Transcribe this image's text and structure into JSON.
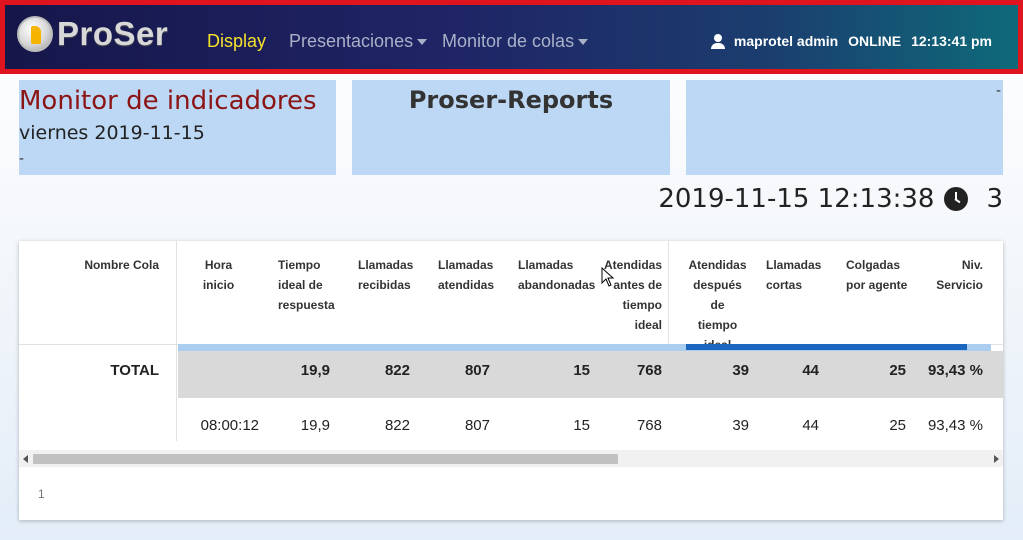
{
  "navbar": {
    "logo_text": "ProSer",
    "items": [
      {
        "label": "Display",
        "active": true
      },
      {
        "label": "Presentaciones",
        "dropdown": true
      },
      {
        "label": "Monitor de colas",
        "dropdown": true
      }
    ],
    "user": "maprotel admin",
    "status": "ONLINE",
    "time": "12:13:41 pm"
  },
  "boxes": {
    "title": "Monitor de indicadores",
    "date": "viernes 2019-11-15",
    "left_dash": "-",
    "center_title": "Proser-Reports",
    "right_dash": "-"
  },
  "timestamp": {
    "datetime": "2019-11-15 12:13:38",
    "count": "3"
  },
  "table": {
    "headers": [
      [
        "Nombre Cola"
      ],
      [
        "Hora",
        "inicio"
      ],
      [
        "Tiempo",
        "ideal de",
        "respuesta"
      ],
      [
        "Llamadas",
        "recibidas"
      ],
      [
        "Llamadas",
        "atendidas"
      ],
      [
        "Llamadas",
        "abandonadas"
      ],
      [
        "Atendidas",
        "antes de",
        "tiempo",
        "ideal"
      ],
      [
        "Atendidas",
        "después de",
        "tiempo",
        "ideal"
      ],
      [
        "Llamadas",
        "cortas"
      ],
      [
        "Colgadas",
        "por agente"
      ],
      [
        "Niv.",
        "Servicio"
      ]
    ],
    "total_row": [
      "TOTAL",
      "",
      "19,9",
      "822",
      "807",
      "15",
      "768",
      "39",
      "44",
      "25",
      "93,43 %"
    ],
    "data_row": [
      "",
      "08:00:12",
      "19,9",
      "822",
      "807",
      "15",
      "768",
      "39",
      "44",
      "25",
      "93,43 %"
    ]
  },
  "pagination": {
    "page": "1"
  },
  "colors": {
    "accent_highlight": "#f5e22b",
    "title_red": "#8b1414",
    "box_blue": "#bcd8f4",
    "progress_dark": "#1b67c0",
    "navbar_border": "#e0141e"
  }
}
